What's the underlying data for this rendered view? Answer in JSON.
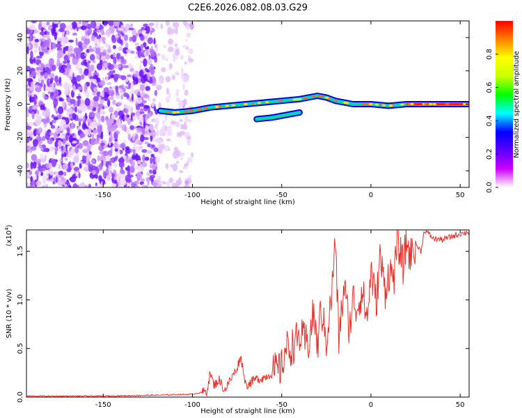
{
  "page_title": "C2E6.2026.082.08.03.G29",
  "chart_data": [
    {
      "type": "heatmap",
      "title": "C2E6.2026.082.08.03.G29",
      "xlabel": "Height of straight line (km)",
      "ylabel": "Frequency (Hz)",
      "xlim": [
        -193,
        55
      ],
      "ylim": [
        -50,
        50
      ],
      "xticks": [
        -150,
        -100,
        -50,
        0,
        50
      ],
      "yticks": [
        -40,
        -20,
        0,
        20,
        40
      ],
      "colorbar": {
        "label": "Normalized spectral amplitude",
        "range": [
          0,
          1
        ],
        "ticks": [
          "0.0",
          "0.2",
          "0.4",
          "0.6",
          "0.8"
        ],
        "colors": [
          "#ffffff",
          "#cc00ff",
          "#5a00ff",
          "#0000ff",
          "#00ffff",
          "#00ff00",
          "#c8ff00",
          "#ffff00",
          "#ff8000",
          "#ff0000"
        ]
      },
      "signal_track": {
        "x": [
          -118,
          -110,
          -100,
          -90,
          -80,
          -70,
          -60,
          -50,
          -40,
          -30,
          -25,
          -20,
          -10,
          0,
          10,
          20,
          30,
          40,
          55
        ],
        "y": [
          -4,
          -5,
          -4,
          -2,
          -1,
          0,
          1,
          2,
          3,
          5,
          4,
          2,
          0,
          0,
          -1,
          0,
          0,
          0,
          0
        ]
      },
      "branch_track": {
        "x": [
          -64,
          -55,
          -45,
          -40
        ],
        "y": [
          -9,
          -8,
          -6,
          -5
        ]
      },
      "noise_region": {
        "x_start": -193,
        "x_end": -100,
        "dense_until": -120
      }
    },
    {
      "type": "line",
      "xlabel": "Height of straight line (km)",
      "ylabel": "SNR (10 * v/v)",
      "scale_note": "(x10^4)",
      "scale_base": "(x10",
      "scale_exp": "4",
      "scale_close": ")",
      "xlim": [
        -193,
        55
      ],
      "ylim": [
        0,
        1.72
      ],
      "xticks": [
        -150,
        -100,
        -50,
        0,
        50
      ],
      "yticks": [
        "0.0",
        "0.5",
        "1.0",
        "1.5"
      ],
      "series": [
        {
          "name": "SNR",
          "color": "#e8302a",
          "x": [
            -193,
            -150,
            -120,
            -100,
            -92,
            -90,
            -88,
            -85,
            -82,
            -75,
            -73,
            -70,
            -65,
            -60,
            -55,
            -50,
            -48,
            -45,
            -40,
            -35,
            -32,
            -30,
            -28,
            -25,
            -22,
            -20,
            -18,
            -15,
            -12,
            -10,
            -8,
            -5,
            -2,
            0,
            3,
            5,
            8,
            10,
            13,
            15,
            18,
            20,
            22,
            25,
            28,
            30,
            35,
            40,
            45,
            50,
            55
          ],
          "y": [
            0.01,
            0.01,
            0.02,
            0.03,
            0.06,
            0.25,
            0.12,
            0.18,
            0.07,
            0.3,
            0.42,
            0.12,
            0.18,
            0.2,
            0.25,
            0.3,
            0.5,
            0.5,
            0.62,
            0.55,
            0.88,
            0.5,
            0.92,
            0.58,
            1.05,
            1.62,
            0.6,
            1.15,
            0.7,
            1.02,
            0.9,
            1.1,
            0.8,
            1.32,
            0.95,
            1.45,
            1.1,
            1.28,
            1.25,
            1.6,
            1.35,
            1.6,
            1.45,
            1.58,
            1.5,
            1.72,
            1.63,
            1.62,
            1.65,
            1.68,
            1.7
          ]
        }
      ]
    }
  ]
}
